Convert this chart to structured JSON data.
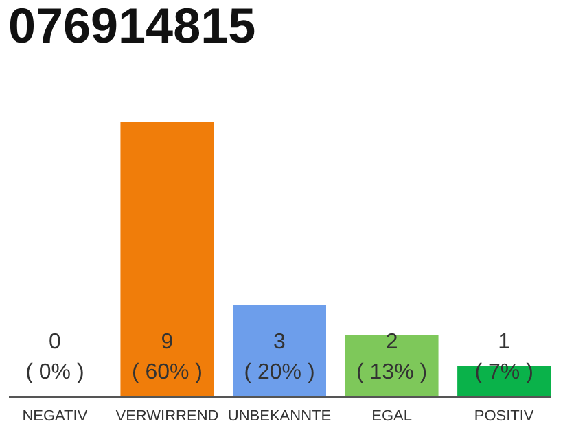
{
  "chart_data": {
    "type": "bar",
    "title": "076914815",
    "categories": [
      "NEGATIV",
      "VERWIRREND",
      "UNBEKANNTE",
      "EGAL",
      "POSITIV"
    ],
    "values": [
      0,
      9,
      3,
      2,
      1
    ],
    "colors": [
      "#7f7f7f",
      "#f07d0a",
      "#6d9eeb",
      "#7ec85a",
      "#0ab24a"
    ],
    "value_labels": [
      "0\n( 0% )",
      "9\n( 60% )",
      "3\n( 20% )",
      "2\n( 13% )",
      "1\n( 7% )"
    ],
    "grid": false
  }
}
